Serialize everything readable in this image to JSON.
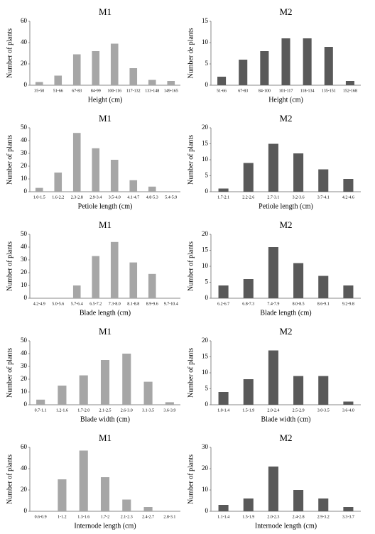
{
  "chart_data": [
    {
      "type": "bar",
      "title": "M1",
      "xlabel": "Height (cm)",
      "ylabel": "Number of plants",
      "color": "#a6a6a6",
      "categories": [
        "35-50",
        "51-66",
        "67-83",
        "84-99",
        "100-116",
        "117-132",
        "133-148",
        "149-165"
      ],
      "values": [
        3,
        9,
        29,
        32,
        39,
        16,
        5,
        4
      ],
      "ylim": [
        0,
        60
      ],
      "yticks": [
        0,
        20,
        40,
        60
      ]
    },
    {
      "type": "bar",
      "title": "M2",
      "xlabel": "Height (cm)",
      "ylabel": "Number de plants",
      "color": "#595959",
      "categories": [
        "51-66",
        "67-83",
        "84-100",
        "101-117",
        "118-134",
        "135-151",
        "152-168"
      ],
      "values": [
        2,
        6,
        8,
        11,
        11,
        9,
        1
      ],
      "ylim": [
        0,
        15
      ],
      "yticks": [
        0,
        5,
        10,
        15
      ]
    },
    {
      "type": "bar",
      "title": "M1",
      "xlabel": "Petiole length (cm)",
      "ylabel": "Number of plants",
      "color": "#a6a6a6",
      "categories": [
        "1.0-1.5",
        "1.6-2.2",
        "2.3-2.8",
        "2.9-3.4",
        "3.5-4.0",
        "4.1-4.7",
        "4.8-5.3",
        "5.4-5.9"
      ],
      "values": [
        3,
        15,
        46,
        34,
        25,
        9,
        4,
        0
      ],
      "ylim": [
        0,
        50
      ],
      "yticks": [
        0,
        10,
        20,
        30,
        40,
        50
      ]
    },
    {
      "type": "bar",
      "title": "M2",
      "xlabel": "Petiole length (cm)",
      "ylabel": "Number of plants",
      "color": "#595959",
      "categories": [
        "1.7-2.1",
        "2.2-2.6",
        "2.7-3.1",
        "3.2-3.6",
        "3.7-4.1",
        "4.2-4.6"
      ],
      "values": [
        1,
        9,
        15,
        12,
        7,
        4
      ],
      "ylim": [
        0,
        20
      ],
      "yticks": [
        0,
        5,
        10,
        15,
        20
      ]
    },
    {
      "type": "bar",
      "title": "M1",
      "xlabel": "Blade length (cm)",
      "ylabel": "Number of plants",
      "color": "#a6a6a6",
      "categories": [
        "4.2-4.9",
        "5.0-5.6",
        "5.7-6.4",
        "6.5-7.2",
        "7.3-8.0",
        "8.1-8.8",
        "8.9-9.6",
        "9.7-10.4"
      ],
      "values": [
        0,
        0,
        10,
        33,
        44,
        28,
        19,
        0
      ],
      "ylim": [
        0,
        50
      ],
      "yticks": [
        0,
        10,
        20,
        30,
        40,
        50
      ]
    },
    {
      "type": "bar",
      "title": "M2",
      "xlabel": "Blade length (cm)",
      "ylabel": "Number of plants",
      "color": "#595959",
      "categories": [
        "6.2-6.7",
        "6.8-7.3",
        "7.4-7.9",
        "8.0-8.5",
        "8.6-9.1",
        "9.2-9.8"
      ],
      "values": [
        4,
        6,
        16,
        11,
        7,
        4
      ],
      "ylim": [
        0,
        20
      ],
      "yticks": [
        0,
        5,
        10,
        15,
        20
      ]
    },
    {
      "type": "bar",
      "title": "M1",
      "xlabel": "Blade width (cm)",
      "ylabel": "Number of plants",
      "color": "#a6a6a6",
      "categories": [
        "0.7-1.1",
        "1.2-1.6",
        "1.7-2.0",
        "2.1-2.5",
        "2.6-3.0",
        "3.1-3.5",
        "3.6-3.9"
      ],
      "values": [
        4,
        15,
        23,
        35,
        40,
        18,
        2
      ],
      "ylim": [
        0,
        50
      ],
      "yticks": [
        0,
        10,
        20,
        30,
        40,
        50
      ]
    },
    {
      "type": "bar",
      "title": "M2",
      "xlabel": "Blade width (cm)",
      "ylabel": "Number of plants",
      "color": "#595959",
      "categories": [
        "1.0-1.4",
        "1.5-1.9",
        "2.0-2.4",
        "2.5-2.9",
        "3.0-3.5",
        "3.6-4.0"
      ],
      "values": [
        4,
        8,
        17,
        9,
        9,
        1
      ],
      "ylim": [
        0,
        20
      ],
      "yticks": [
        0,
        5,
        10,
        15,
        20
      ]
    },
    {
      "type": "bar",
      "title": "M1",
      "xlabel": "Internode length (cm)",
      "ylabel": "Number of plants",
      "color": "#a6a6a6",
      "categories": [
        "0.6-0.9",
        "1-1.2",
        "1.3-1.6",
        "1.7-2",
        "2.1-2.3",
        "2.4-2.7",
        "2.8-3.1"
      ],
      "values": [
        0,
        30,
        57,
        32,
        11,
        4,
        0
      ],
      "ylim": [
        0,
        60
      ],
      "yticks": [
        0,
        20,
        40,
        60
      ]
    },
    {
      "type": "bar",
      "title": "M2",
      "xlabel": "Internode length (cm)",
      "ylabel": "Number of plants",
      "color": "#595959",
      "categories": [
        "1.1-1.4",
        "1.5-1.9",
        "2.0-2.3",
        "2.4-2.8",
        "2.9-3.2",
        "3.3-3.7"
      ],
      "values": [
        3,
        6,
        21,
        10,
        6,
        2
      ],
      "ylim": [
        0,
        30
      ],
      "yticks": [
        0,
        10,
        20,
        30
      ]
    }
  ]
}
